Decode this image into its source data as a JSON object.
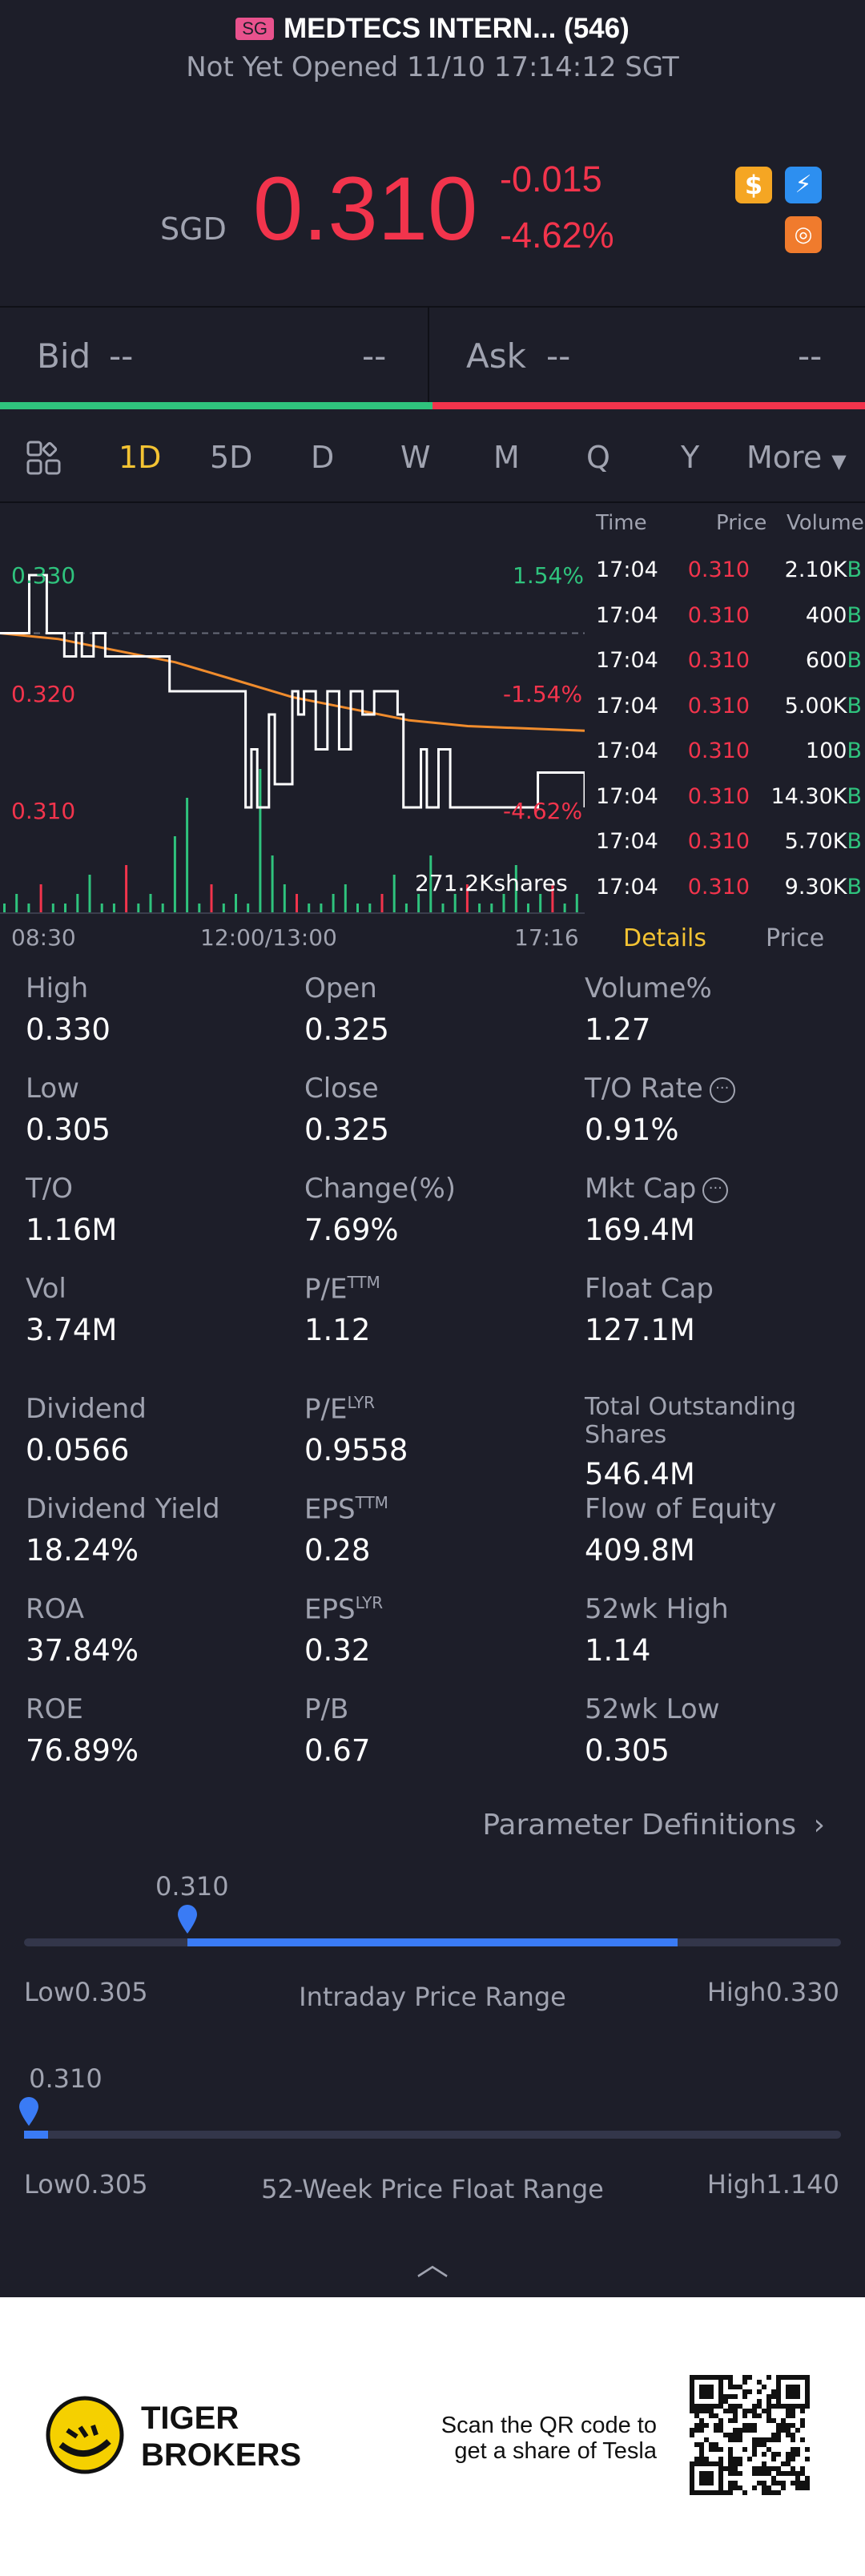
{
  "header": {
    "market_badge": "SG",
    "title": "MEDTECS INTERN... (546)",
    "status": "Not Yet Opened 11/10 17:14:12 SGT"
  },
  "quote": {
    "currency": "SGD",
    "price": "0.310",
    "change": "-0.015",
    "change_pct": "-4.62%"
  },
  "bid_ask": {
    "bid_label": "Bid",
    "bid_price": "--",
    "bid_size": "--",
    "ask_label": "Ask",
    "ask_price": "--",
    "ask_size": "--"
  },
  "periods": {
    "items": [
      "1D",
      "5D",
      "D",
      "W",
      "M",
      "Q",
      "Y"
    ],
    "active": "1D",
    "more": "More"
  },
  "chart": {
    "label_high": "0.330",
    "label_mid": "0.320",
    "label_low": "0.310",
    "pct_high": "1.54%",
    "pct_mid": "-1.54%",
    "pct_low": "-4.62%",
    "volume_label": "271.2Kshares",
    "time_start": "08:30",
    "time_mid": "12:00/13:00",
    "time_end": "17:16"
  },
  "chart_data": {
    "type": "line",
    "x_axis": [
      "08:30",
      "12:00/13:00",
      "17:16"
    ],
    "ylim": [
      0.31,
      0.33
    ],
    "y_ticks": [
      "0.330",
      "0.320",
      "0.310"
    ],
    "pct_ticks": [
      "1.54%",
      "-1.54%",
      "-4.62%"
    ],
    "previous_close": 0.325,
    "series": [
      {
        "x": [
          0,
          0.05,
          0.08,
          0.1,
          0.11,
          0.13,
          0.14,
          0.16,
          0.18,
          0.2,
          0.29,
          0.3,
          0.41,
          0.42,
          0.43,
          0.44,
          0.46,
          0.47,
          0.5,
          0.51,
          0.52,
          0.54,
          0.56,
          0.58,
          0.6,
          0.62,
          0.64,
          0.68,
          0.69,
          0.72,
          0.73,
          0.75,
          0.77,
          0.78,
          0.91,
          0.92,
          1.0
        ],
        "values": [
          0.325,
          0.33,
          0.325,
          0.325,
          0.323,
          0.325,
          0.323,
          0.325,
          0.323,
          0.323,
          0.32,
          0.32,
          0.32,
          0.31,
          0.315,
          0.31,
          0.318,
          0.312,
          0.32,
          0.318,
          0.32,
          0.315,
          0.32,
          0.315,
          0.32,
          0.318,
          0.32,
          0.318,
          0.31,
          0.315,
          0.31,
          0.315,
          0.31,
          0.31,
          0.31,
          0.313,
          0.31
        ]
      },
      {
        "x": [
          0,
          0.1,
          0.2,
          0.3,
          0.4,
          0.5,
          0.6,
          0.7,
          0.8,
          0.9,
          1.0
        ],
        "values": [
          0.325,
          0.3245,
          0.3235,
          0.3225,
          0.321,
          0.3195,
          0.3185,
          0.3175,
          0.317,
          0.3168,
          0.3166
        ]
      }
    ],
    "volume": [
      1,
      2,
      1,
      3,
      1,
      1,
      2,
      4,
      1,
      1,
      5,
      1,
      2,
      1,
      8,
      12,
      1,
      3,
      1,
      2,
      1,
      15,
      6,
      3,
      2,
      1,
      1,
      2,
      3,
      1,
      1,
      2,
      4,
      1,
      2,
      6,
      1,
      2,
      3,
      1,
      1,
      2,
      5,
      1,
      2,
      3,
      1,
      2
    ]
  },
  "trades": {
    "headers": [
      "Time",
      "Price",
      "Volume"
    ],
    "rows": [
      {
        "time": "17:04",
        "price": "0.310",
        "volume": "2.10K",
        "side": "B"
      },
      {
        "time": "17:04",
        "price": "0.310",
        "volume": "400",
        "side": "B"
      },
      {
        "time": "17:04",
        "price": "0.310",
        "volume": "600",
        "side": "B"
      },
      {
        "time": "17:04",
        "price": "0.310",
        "volume": "5.00K",
        "side": "B"
      },
      {
        "time": "17:04",
        "price": "0.310",
        "volume": "100",
        "side": "B"
      },
      {
        "time": "17:04",
        "price": "0.310",
        "volume": "14.30K",
        "side": "B"
      },
      {
        "time": "17:04",
        "price": "0.310",
        "volume": "5.70K",
        "side": "B"
      },
      {
        "time": "17:04",
        "price": "0.310",
        "volume": "9.30K",
        "side": "B"
      }
    ],
    "tab_details": "Details",
    "tab_price": "Price"
  },
  "stats": [
    {
      "label": "High",
      "value": "0.330"
    },
    {
      "label": "Open",
      "value": "0.325"
    },
    {
      "label": "Volume%",
      "value": "1.27"
    },
    {
      "label": "Low",
      "value": "0.305"
    },
    {
      "label": "Close",
      "value": "0.325"
    },
    {
      "label": "T/O Rate",
      "value": "0.91%"
    },
    {
      "label": "T/O",
      "value": "1.16M"
    },
    {
      "label": "Change(%)",
      "value": "7.69%"
    },
    {
      "label": "Mkt Cap",
      "value": "169.4M"
    },
    {
      "label": "Vol",
      "value": "3.74M"
    },
    {
      "label": "P/E",
      "sup": "TTM",
      "value": "1.12"
    },
    {
      "label": "Float Cap",
      "value": "127.1M"
    },
    {
      "label": "Dividend",
      "value": "0.0566"
    },
    {
      "label": "P/E",
      "sup": "LYR",
      "value": "0.9558"
    },
    {
      "label": "Total Outstanding Shares",
      "value": "546.4M"
    },
    {
      "label": "Dividend Yield",
      "value": "18.24%"
    },
    {
      "label": "EPS",
      "sup": "TTM",
      "value": "0.28"
    },
    {
      "label": "Flow of Equity",
      "value": "409.8M"
    },
    {
      "label": "ROA",
      "value": "37.84%"
    },
    {
      "label": "EPS",
      "sup": "LYR",
      "value": "0.32"
    },
    {
      "label": "52wk High",
      "value": "1.14"
    },
    {
      "label": "ROE",
      "value": "76.89%"
    },
    {
      "label": "P/B",
      "value": "0.67"
    },
    {
      "label": "52wk Low",
      "value": "0.305"
    }
  ],
  "param_link": "Parameter Definitions",
  "intraday_range": {
    "current": "0.310",
    "low_label": "Low",
    "low": "0.305",
    "high_label": "High",
    "high": "0.330",
    "title": "Intraday Price Range",
    "marker_fraction": 0.2,
    "fill_start": 0.2,
    "fill_end": 0.8
  },
  "week52_range": {
    "current": "0.310",
    "low_label": "Low",
    "low": "0.305",
    "high_label": "High",
    "high": "1.140",
    "title": "52-Week Price Float Range",
    "marker_fraction": 0.006
  },
  "footer": {
    "brand_line1": "TIGER",
    "brand_line2": "BROKERS",
    "promo_line1": "Scan the QR code to",
    "promo_line2": "get a share of Tesla"
  },
  "colors": {
    "up": "#2fc37d",
    "down": "#f2344c",
    "accent": "#f3c333",
    "range_blue": "#3a7bf5"
  }
}
